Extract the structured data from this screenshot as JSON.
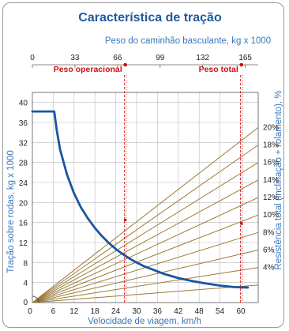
{
  "colors": {
    "title": "#1f5a9e",
    "axis_label": "#3b78b8",
    "rimpull_curve": "#1a55a0",
    "resistance_lines": "#9c7a36",
    "weight_markers": "#cc1111",
    "grid": "#bbbbbb"
  },
  "chart_data": {
    "type": "line",
    "title": "Característica de tração",
    "top_axis": {
      "label": "Peso do caminhão basculante, kg x 1000",
      "ticks": [
        "0",
        "33",
        "66",
        "99",
        "132",
        "165"
      ],
      "range": [
        0,
        175
      ]
    },
    "x_axis": {
      "label": "Velocidade de viagem, km/h",
      "ticks": [
        "0",
        "6",
        "12",
        "18",
        "24",
        "30",
        "36",
        "42",
        "48",
        "54",
        "60"
      ],
      "range": [
        0,
        65
      ]
    },
    "y_axis": {
      "label": "Tração sobre rodas, kg x 1000",
      "ticks": [
        "0",
        "4",
        "8",
        "12",
        "16",
        "20",
        "24",
        "28",
        "32",
        "36",
        "40"
      ],
      "range": [
        0,
        42
      ]
    },
    "right_axis": {
      "label": "Resistência total (inclinação + rolamento), %",
      "ticks": [
        "4%",
        "6%",
        "8%",
        "10%",
        "12%",
        "14%",
        "16%",
        "18%",
        "20%"
      ]
    },
    "annotations": [
      {
        "text": "Peso operacional",
        "weight": 72
      },
      {
        "text": "Peso  total",
        "weight": 162
      }
    ],
    "resistance_lines": [
      {
        "percent": 2,
        "y_end": 3.5
      },
      {
        "percent": 4,
        "y_end": 7
      },
      {
        "percent": 6,
        "y_end": 10.5
      },
      {
        "percent": 8,
        "y_end": 14
      },
      {
        "percent": 10,
        "y_end": 17.5
      },
      {
        "percent": 12,
        "y_end": 21
      },
      {
        "percent": 14,
        "y_end": 24.5
      },
      {
        "percent": 16,
        "y_end": 28
      },
      {
        "percent": 18,
        "y_end": 31.5
      },
      {
        "percent": 20,
        "y_end": 35
      }
    ],
    "series": [
      {
        "x": [
          0,
          6.3,
          7,
          8,
          10,
          12,
          14,
          16,
          18,
          20,
          22,
          24,
          26,
          28,
          30,
          32,
          35,
          38,
          42,
          46,
          50,
          54,
          58,
          62
        ],
        "y": [
          38.2,
          38.2,
          34.5,
          30.5,
          25.5,
          21.8,
          19.0,
          16.8,
          14.9,
          13.3,
          11.9,
          10.7,
          9.7,
          8.8,
          8.0,
          7.3,
          6.5,
          5.7,
          4.9,
          4.3,
          3.8,
          3.4,
          3.1,
          3.0
        ]
      }
    ]
  }
}
